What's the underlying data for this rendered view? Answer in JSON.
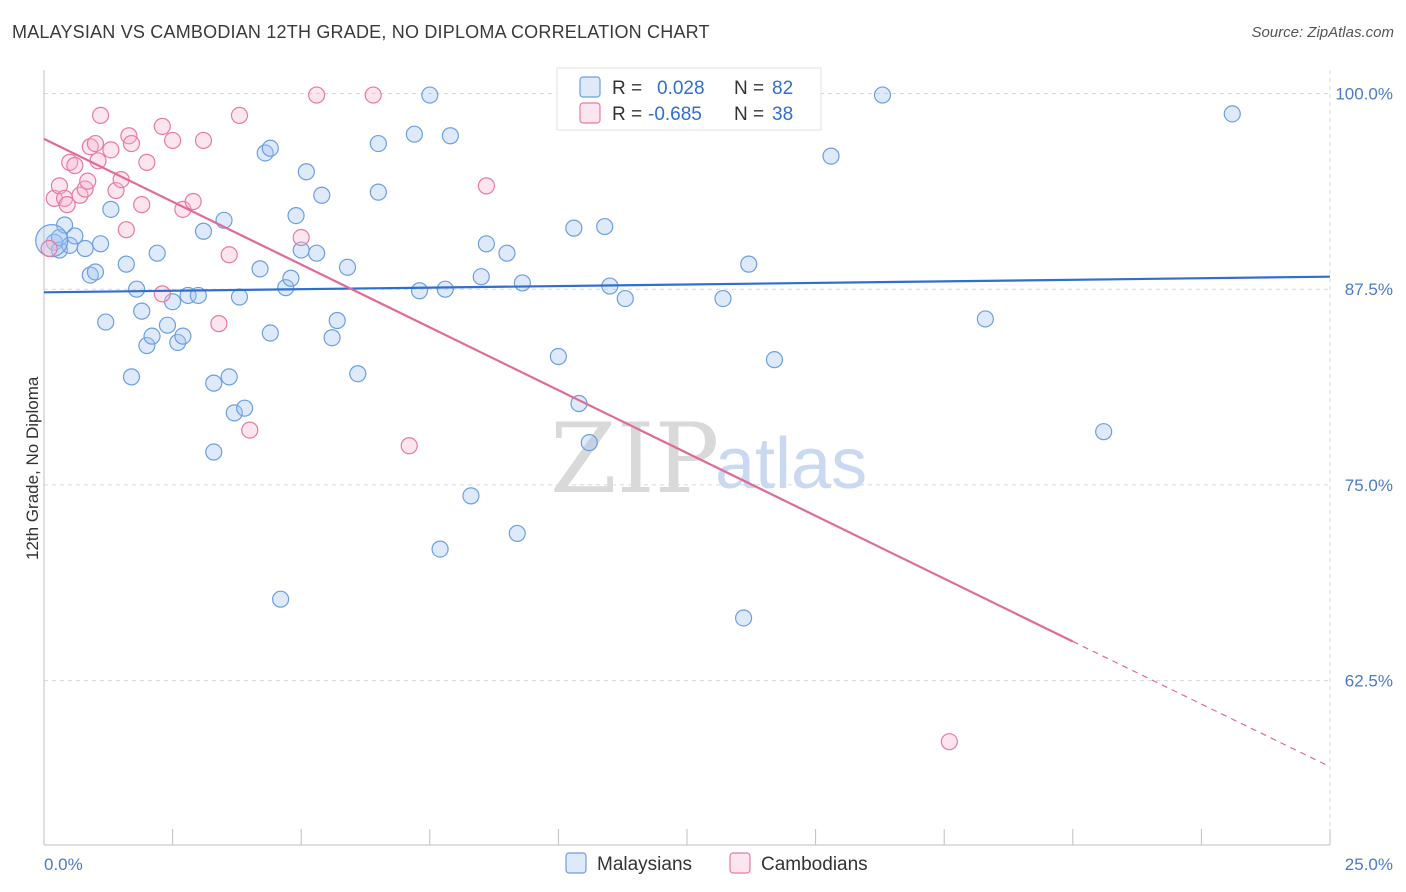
{
  "title": "MALAYSIAN VS CAMBODIAN 12TH GRADE, NO DIPLOMA CORRELATION CHART",
  "source": "Source: ZipAtlas.com",
  "watermark": {
    "zip": "ZIP",
    "atlas": "atlas"
  },
  "colors": {
    "blue": "#6c9fe0",
    "blue_fill": "rgba(160,195,240,0.35)",
    "blue_line": "#2f6fd0",
    "pink": "#e87aa0",
    "pink_fill": "rgba(245,180,205,0.35)",
    "pink_line": "#e06a98"
  },
  "legend_top": {
    "rows": [
      {
        "r_label": "R = ",
        "r_value": "0.028",
        "n_label": "N = ",
        "n_value": "82"
      },
      {
        "r_label": "R = ",
        "r_value": "-0.685",
        "n_label": "N = ",
        "n_value": "38"
      }
    ]
  },
  "chart_data": {
    "type": "scatter",
    "title": "MALAYSIAN VS CAMBODIAN 12TH GRADE, NO DIPLOMA CORRELATION CHART",
    "xlabel": "",
    "ylabel": "12th Grade, No Diploma",
    "xlim": [
      0,
      25
    ],
    "ylim": [
      52,
      101.5
    ],
    "x_tick_labels": [
      {
        "value": 0,
        "label": "0.0%"
      },
      {
        "value": 25,
        "label": "25.0%"
      }
    ],
    "y_tick_labels": [
      {
        "value": 100,
        "label": "100.0%"
      },
      {
        "value": 87.5,
        "label": "87.5%"
      },
      {
        "value": 75,
        "label": "75.0%"
      },
      {
        "value": 62.5,
        "label": "62.5%"
      }
    ],
    "legend_position": "bottom",
    "grid": true,
    "series": [
      {
        "name": "Malaysians",
        "color": "#6c9fe0",
        "trend": {
          "x": [
            0,
            25
          ],
          "y": [
            87.3,
            88.3
          ]
        },
        "points": [
          [
            0.2,
            90.5
          ],
          [
            0.3,
            90.0
          ],
          [
            0.3,
            90.8
          ],
          [
            0.4,
            91.6
          ],
          [
            0.5,
            90.3
          ],
          [
            0.6,
            90.9
          ],
          [
            0.8,
            90.1
          ],
          [
            0.9,
            88.4
          ],
          [
            1.0,
            88.6
          ],
          [
            1.1,
            90.4
          ],
          [
            1.2,
            85.4
          ],
          [
            1.3,
            92.6
          ],
          [
            1.6,
            89.1
          ],
          [
            1.7,
            81.9
          ],
          [
            1.8,
            87.5
          ],
          [
            1.9,
            86.1
          ],
          [
            2.0,
            83.9
          ],
          [
            2.1,
            84.5
          ],
          [
            2.2,
            89.8
          ],
          [
            2.4,
            85.2
          ],
          [
            2.5,
            86.7
          ],
          [
            2.6,
            84.1
          ],
          [
            2.7,
            84.5
          ],
          [
            2.8,
            87.1
          ],
          [
            3.0,
            87.1
          ],
          [
            3.1,
            91.2
          ],
          [
            3.3,
            77.1
          ],
          [
            3.3,
            81.5
          ],
          [
            3.5,
            91.9
          ],
          [
            3.6,
            81.9
          ],
          [
            3.7,
            79.6
          ],
          [
            3.8,
            87.0
          ],
          [
            3.9,
            79.9
          ],
          [
            4.2,
            88.8
          ],
          [
            4.3,
            96.2
          ],
          [
            4.4,
            96.5
          ],
          [
            4.4,
            84.7
          ],
          [
            4.6,
            67.7
          ],
          [
            4.7,
            87.6
          ],
          [
            4.8,
            88.2
          ],
          [
            4.9,
            92.2
          ],
          [
            5.0,
            90.0
          ],
          [
            5.1,
            95.0
          ],
          [
            5.3,
            89.8
          ],
          [
            5.4,
            93.5
          ],
          [
            5.6,
            84.4
          ],
          [
            5.7,
            85.5
          ],
          [
            5.9,
            88.9
          ],
          [
            6.1,
            82.1
          ],
          [
            6.5,
            93.7
          ],
          [
            6.5,
            96.8
          ],
          [
            7.2,
            97.4
          ],
          [
            7.3,
            87.4
          ],
          [
            7.5,
            99.9
          ],
          [
            7.7,
            70.9
          ],
          [
            7.8,
            87.5
          ],
          [
            7.9,
            97.3
          ],
          [
            8.3,
            74.3
          ],
          [
            8.5,
            88.3
          ],
          [
            8.6,
            90.4
          ],
          [
            9.0,
            89.8
          ],
          [
            9.2,
            71.9
          ],
          [
            9.3,
            87.9
          ],
          [
            10.0,
            83.2
          ],
          [
            10.3,
            91.4
          ],
          [
            10.4,
            80.2
          ],
          [
            10.6,
            77.7
          ],
          [
            10.9,
            91.5
          ],
          [
            11.0,
            87.7
          ],
          [
            11.3,
            86.9
          ],
          [
            11.5,
            99.9
          ],
          [
            13.2,
            86.9
          ],
          [
            13.6,
            66.5
          ],
          [
            13.7,
            89.1
          ],
          [
            14.0,
            98.3
          ],
          [
            14.2,
            83.0
          ],
          [
            15.3,
            96.0
          ],
          [
            16.3,
            99.9
          ],
          [
            18.3,
            85.6
          ],
          [
            20.6,
            78.4
          ],
          [
            23.1,
            98.7
          ],
          [
            0.15,
            90.6
          ]
        ]
      },
      {
        "name": "Cambodians",
        "color": "#e87aa0",
        "trend": {
          "x": [
            0,
            20
          ],
          "y": [
            97.1,
            65.0
          ]
        },
        "trend_dashed": {
          "x": [
            20,
            25
          ],
          "y": [
            65.0,
            57.0
          ]
        },
        "points": [
          [
            0.1,
            90.1
          ],
          [
            0.2,
            93.3
          ],
          [
            0.3,
            94.1
          ],
          [
            0.4,
            93.3
          ],
          [
            0.45,
            92.9
          ],
          [
            0.5,
            95.6
          ],
          [
            0.6,
            95.4
          ],
          [
            0.7,
            93.5
          ],
          [
            0.8,
            93.9
          ],
          [
            0.85,
            94.4
          ],
          [
            0.9,
            96.6
          ],
          [
            1.0,
            96.8
          ],
          [
            1.05,
            95.7
          ],
          [
            1.1,
            98.6
          ],
          [
            1.3,
            96.4
          ],
          [
            1.4,
            93.8
          ],
          [
            1.5,
            94.5
          ],
          [
            1.6,
            91.3
          ],
          [
            1.65,
            97.3
          ],
          [
            1.7,
            96.8
          ],
          [
            1.9,
            92.9
          ],
          [
            2.0,
            95.6
          ],
          [
            2.3,
            87.2
          ],
          [
            2.3,
            97.9
          ],
          [
            2.5,
            97.0
          ],
          [
            2.7,
            92.6
          ],
          [
            2.9,
            93.1
          ],
          [
            3.1,
            97.0
          ],
          [
            3.4,
            85.3
          ],
          [
            3.6,
            89.7
          ],
          [
            3.8,
            98.6
          ],
          [
            4.0,
            78.5
          ],
          [
            5.0,
            90.8
          ],
          [
            5.3,
            99.9
          ],
          [
            6.4,
            99.9
          ],
          [
            7.1,
            77.5
          ],
          [
            8.6,
            94.1
          ],
          [
            17.6,
            58.6
          ]
        ]
      }
    ]
  },
  "legend_bottom": [
    {
      "label": "Malaysians",
      "color": "#6c9fe0"
    },
    {
      "label": "Cambodians",
      "color": "#e87aa0"
    }
  ]
}
